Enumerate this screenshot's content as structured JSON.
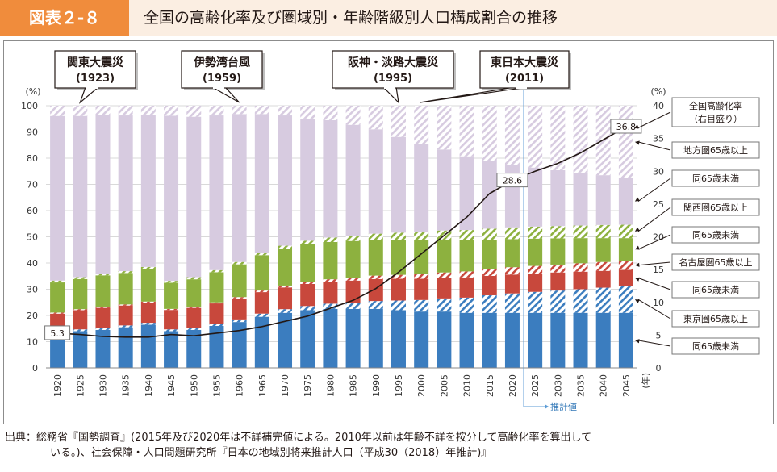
{
  "header": {
    "figure_label": "図表２-８",
    "title": "全国の高齢化率及び圏域別・年齢階級別人口構成割合の推移"
  },
  "chart_data": {
    "type": "bar",
    "stacked": true,
    "categories": [
      "1920",
      "1925",
      "1930",
      "1935",
      "1940",
      "1945",
      "1950",
      "1955",
      "1960",
      "1965",
      "1970",
      "1975",
      "1980",
      "1985",
      "1990",
      "1995",
      "2000",
      "2005",
      "2010",
      "2015",
      "2020",
      "2025",
      "2030",
      "2035",
      "2040",
      "2045"
    ],
    "projection_start": "2025",
    "projection_label": "推計値",
    "left_axis": {
      "unit": "(%)",
      "min": 0,
      "max": 100,
      "ticks": [
        0,
        10,
        20,
        30,
        40,
        50,
        60,
        70,
        80,
        90,
        100
      ]
    },
    "right_axis": {
      "unit": "(%)",
      "min": 0,
      "max": 40,
      "ticks": [
        0,
        5,
        10,
        15,
        20,
        25,
        30,
        35,
        40
      ]
    },
    "x_unit": "(年)",
    "colors": {
      "tokyo": "#3b7dbf",
      "nagoya": "#c8483c",
      "kansai": "#8db13f",
      "chiho": "#d7cbe0",
      "line": "#231815"
    },
    "series": [
      {
        "name": "東京圏65歳未満",
        "group": "tokyo",
        "pattern": "solid",
        "values": [
          13,
          14,
          14.5,
          15.5,
          16.5,
          14,
          14.5,
          16,
          17.5,
          19.5,
          21,
          22,
          22.5,
          22.5,
          22.5,
          22,
          21.5,
          21.5,
          21,
          21,
          21,
          21,
          21,
          21,
          21,
          21
        ]
      },
      {
        "name": "東京圏65歳以上",
        "group": "tokyo",
        "pattern": "hatch",
        "values": [
          0.7,
          0.7,
          0.7,
          0.7,
          0.7,
          0.7,
          0.8,
          0.8,
          1,
          1.2,
          1.4,
          1.6,
          2,
          2.4,
          3,
          3.7,
          4.4,
          5,
          5.8,
          6.7,
          7.4,
          8,
          8.5,
          9,
          9.6,
          10.2
        ]
      },
      {
        "name": "名古屋圏65歳未満",
        "group": "nagoya",
        "pattern": "solid",
        "values": [
          7,
          7.3,
          7.7,
          7.6,
          7.7,
          7.4,
          7.6,
          7.8,
          8,
          8.2,
          8.3,
          8.4,
          8.4,
          8.4,
          8.4,
          8.3,
          8.1,
          7.9,
          7.7,
          7.4,
          7.2,
          7,
          6.9,
          6.7,
          6.4,
          6.2
        ]
      },
      {
        "name": "名古屋圏65歳以上",
        "group": "nagoya",
        "pattern": "hatch",
        "values": [
          0.4,
          0.4,
          0.4,
          0.4,
          0.4,
          0.4,
          0.4,
          0.4,
          0.5,
          0.6,
          0.7,
          0.8,
          0.9,
          1.1,
          1.3,
          1.5,
          1.8,
          2,
          2.3,
          2.6,
          2.8,
          2.9,
          3,
          3.2,
          3.4,
          3.5
        ]
      },
      {
        "name": "関西圏65歳未満",
        "group": "kansai",
        "pattern": "solid",
        "values": [
          11.5,
          11.5,
          12,
          12,
          12.5,
          10,
          10.5,
          11.5,
          12.5,
          13.5,
          14,
          14.3,
          14.2,
          14,
          13.7,
          13.4,
          13,
          12.5,
          11.9,
          11.1,
          10.7,
          10.4,
          10,
          9.6,
          9.1,
          8.6
        ]
      },
      {
        "name": "関西圏65歳以上",
        "group": "kansai",
        "pattern": "hatch",
        "values": [
          0.7,
          0.7,
          0.7,
          0.7,
          0.7,
          0.7,
          0.8,
          0.8,
          0.9,
          1,
          1.2,
          1.4,
          1.7,
          2,
          2.3,
          2.7,
          3.1,
          3.5,
          3.9,
          4.3,
          4.5,
          4.6,
          4.7,
          4.8,
          5,
          5.1
        ]
      },
      {
        "name": "地方圏65歳未満",
        "group": "chiho",
        "pattern": "solid",
        "values": [
          62.8,
          61.5,
          60.5,
          59.4,
          58,
          63,
          61.2,
          59,
          56.4,
          52.8,
          49.7,
          46.6,
          44.8,
          42.3,
          39.8,
          36.5,
          33.4,
          30.9,
          28.1,
          25.7,
          23.7,
          22.5,
          21.3,
          20.2,
          19,
          17.8
        ]
      },
      {
        "name": "地方圏65歳以上",
        "group": "chiho",
        "pattern": "hatch",
        "values": [
          3.9,
          3.9,
          3.5,
          3.7,
          3.5,
          3.8,
          4.2,
          3.7,
          3.2,
          3.2,
          3.7,
          4.9,
          5.5,
          7.3,
          9,
          11.9,
          14.7,
          16.7,
          19.3,
          21.2,
          22.7,
          23.6,
          24.6,
          25.5,
          26.5,
          27.6
        ]
      }
    ],
    "line": {
      "name": "全国高齢化率",
      "axis": "right",
      "values": [
        5.3,
        5.1,
        4.8,
        4.7,
        4.7,
        5.1,
        4.9,
        5.3,
        5.7,
        6.3,
        7.1,
        7.9,
        9.1,
        10.3,
        12.1,
        14.6,
        17.4,
        20.2,
        23,
        26.6,
        28.6,
        30,
        31.2,
        32.8,
        34.8,
        36.8
      ],
      "labeled_points": [
        {
          "category": "1920",
          "label": "5.3"
        },
        {
          "category": "2020",
          "label": "28.6"
        },
        {
          "category": "2045",
          "label": "36.8"
        }
      ]
    },
    "legend": [
      {
        "text": "全国高齢化率\n（右目盛り）",
        "points_to": "line"
      },
      {
        "text": "地方圏65歳以上",
        "points_to": "地方圏65歳以上"
      },
      {
        "text": "同65歳未満",
        "points_to": "地方圏65歳未満"
      },
      {
        "text": "関西圏65歳以上",
        "points_to": "関西圏65歳以上"
      },
      {
        "text": "同65歳未満",
        "points_to": "関西圏65歳未満"
      },
      {
        "text": "名古屋圏65歳以上",
        "points_to": "名古屋圏65歳以上"
      },
      {
        "text": "同65歳未満",
        "points_to": "名古屋圏65歳未満"
      },
      {
        "text": "東京圏65歳以上",
        "points_to": "東京圏65歳以上"
      },
      {
        "text": "同65歳未満",
        "points_to": "東京圏65歳未満"
      }
    ],
    "annotations": [
      {
        "text": "関東大震災\n(1923)",
        "category": "1925"
      },
      {
        "text": "伊勢湾台風\n(1959)",
        "category": "1960"
      },
      {
        "text": "阪神・淡路大震災\n(1995)",
        "category": "1995"
      },
      {
        "text": "東日本大震災\n(2011)",
        "category": "2010"
      }
    ]
  },
  "source": {
    "line1": "出典：総務省『国勢調査』(2015年及び2020年は不詳補完値による。2010年以前は年齢不詳を按分して高齢化率を算出して",
    "line2": "いる。)、社会保障・人口問題研究所『日本の地域別将来推計人口（平成30（2018）年推計)』"
  }
}
